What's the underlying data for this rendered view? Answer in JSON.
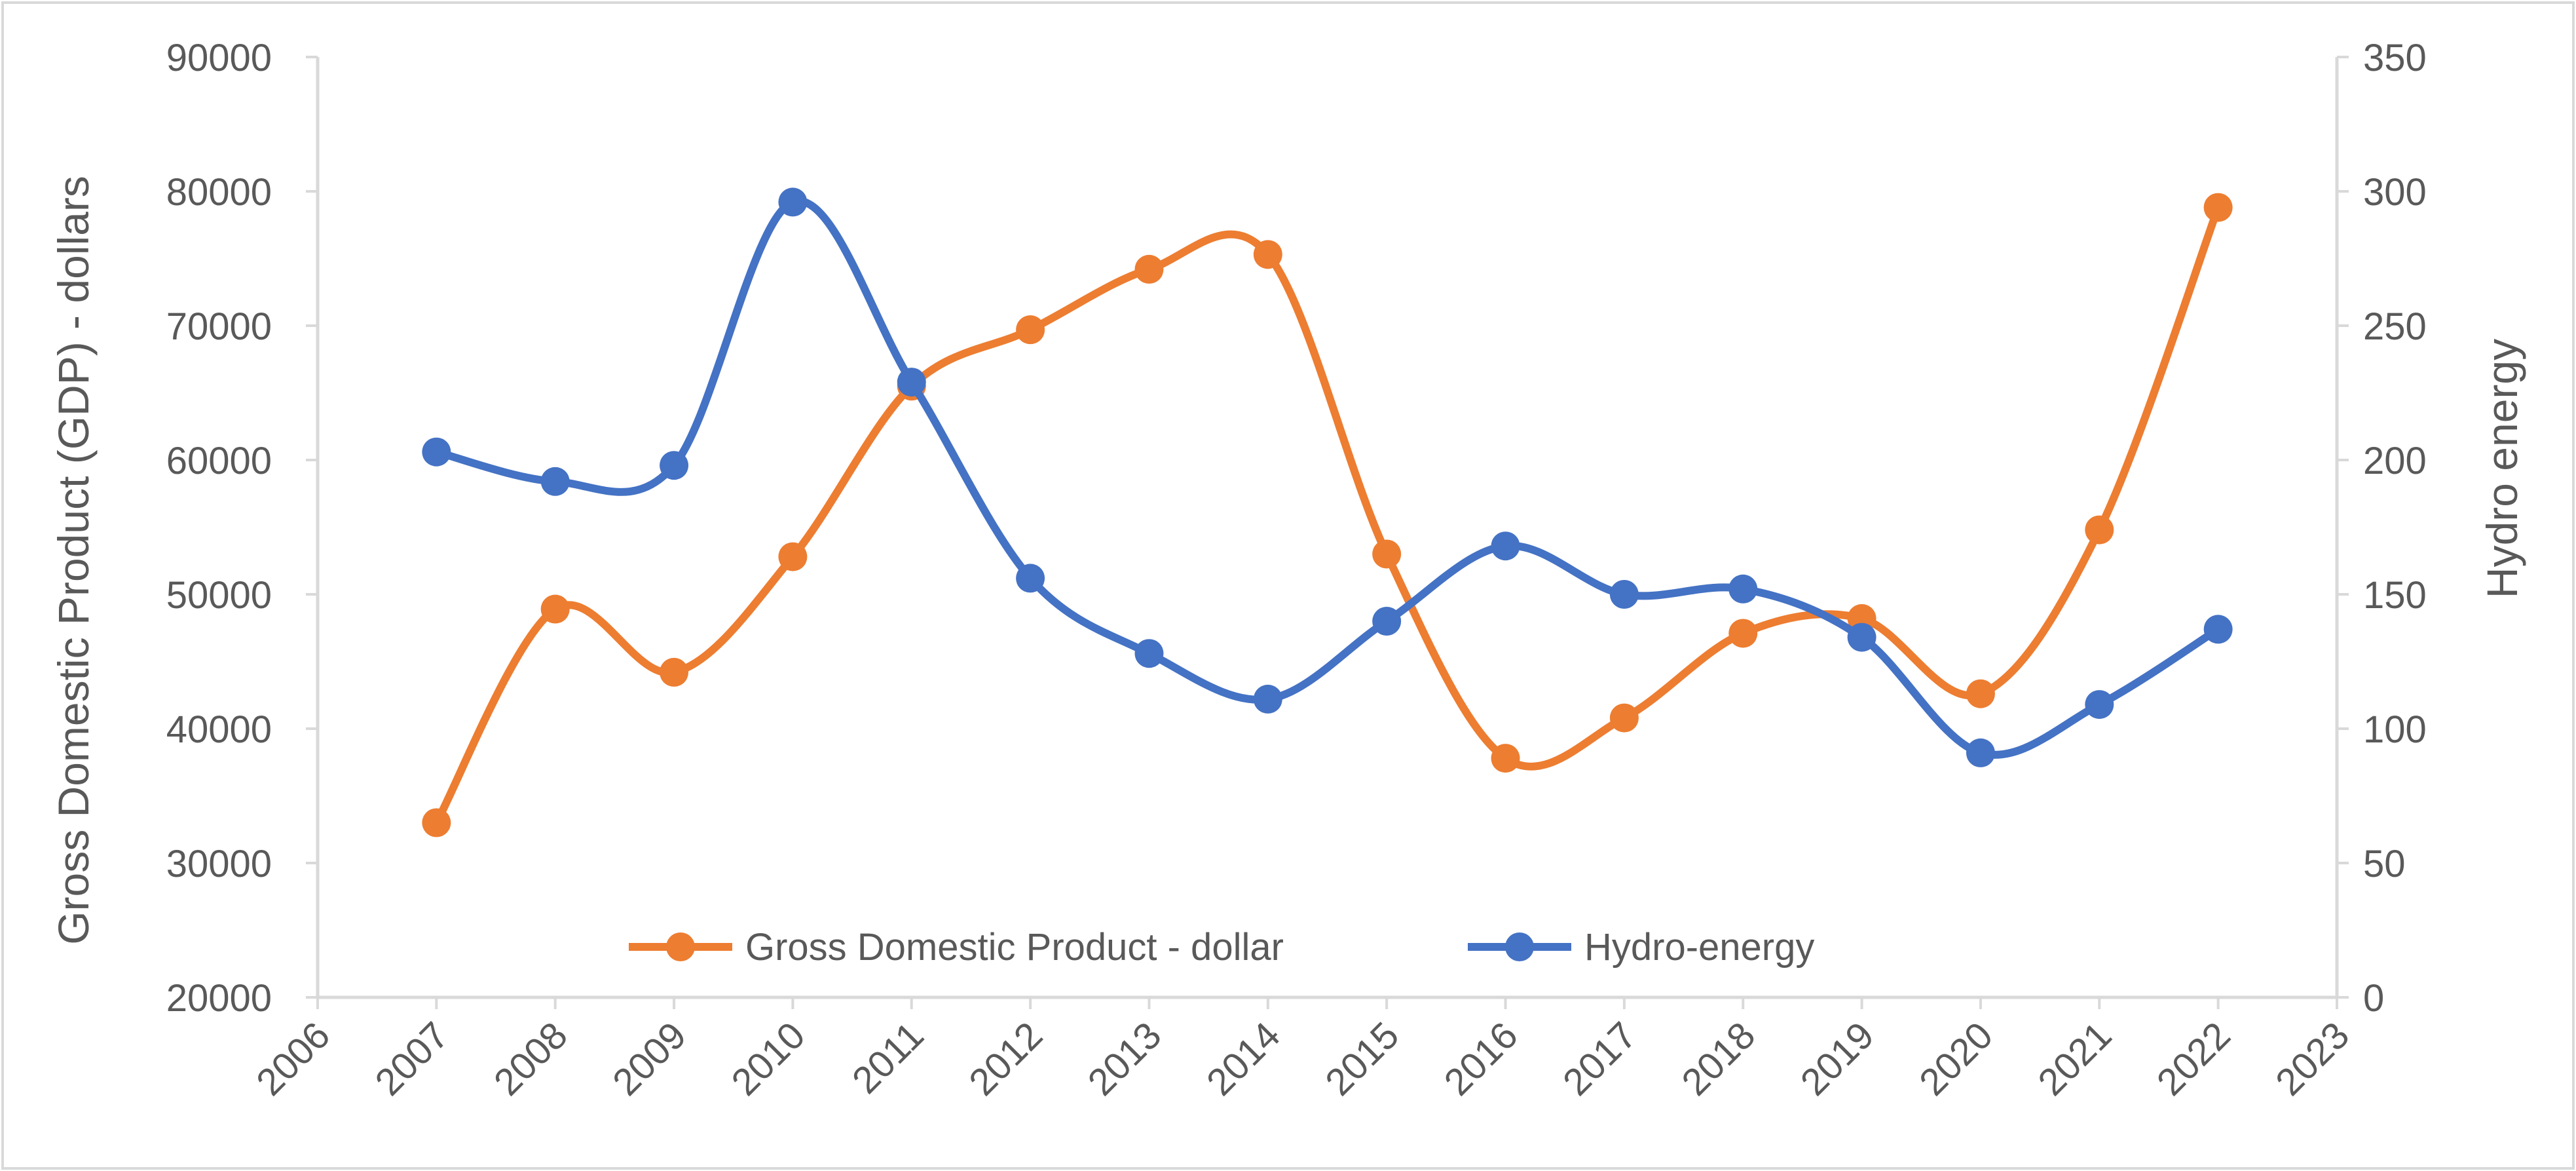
{
  "chart_data": {
    "type": "line",
    "smooth": true,
    "x": [
      2007,
      2008,
      2009,
      2010,
      2011,
      2012,
      2013,
      2014,
      2015,
      2016,
      2017,
      2018,
      2019,
      2020,
      2021,
      2022
    ],
    "x_ticks": [
      "2006",
      "2007",
      "2008",
      "2009",
      "2010",
      "2011",
      "2012",
      "2013",
      "2014",
      "2015",
      "2016",
      "2017",
      "2018",
      "2019",
      "2020",
      "2021",
      "2022",
      "2023"
    ],
    "xlim": [
      2006,
      2023
    ],
    "series": [
      {
        "name": "Gross Domestic Product - dollar",
        "axis": "left",
        "color": "#ED7D31",
        "values": [
          33000,
          48900,
          44200,
          52800,
          65500,
          69700,
          74200,
          75300,
          53000,
          37800,
          40800,
          47100,
          48200,
          42600,
          54800,
          78800
        ]
      },
      {
        "name": "Hydro-energy",
        "axis": "right",
        "color": "#4472C4",
        "values": [
          203,
          192,
          198,
          296,
          229,
          156,
          128,
          111,
          140,
          168,
          150,
          152,
          134,
          91,
          109,
          137
        ]
      }
    ],
    "y_left": {
      "label": "Gross Domestic Product (GDP) - dollars",
      "lim": [
        20000,
        90000
      ],
      "ticks": [
        "20000",
        "30000",
        "40000",
        "50000",
        "60000",
        "70000",
        "80000",
        "90000"
      ]
    },
    "y_right": {
      "label": "Hydro  energy",
      "lim": [
        0,
        350
      ],
      "ticks": [
        "0",
        "50",
        "100",
        "150",
        "200",
        "250",
        "300",
        "350"
      ]
    },
    "legend": {
      "position": "bottom-center",
      "items": [
        "Gross Domestic Product - dollar",
        "Hydro-energy"
      ]
    },
    "grid": false,
    "style": {
      "axis_color": "#D9D9D9",
      "text_color": "#595959",
      "border_color": "#D9D9D9"
    }
  }
}
